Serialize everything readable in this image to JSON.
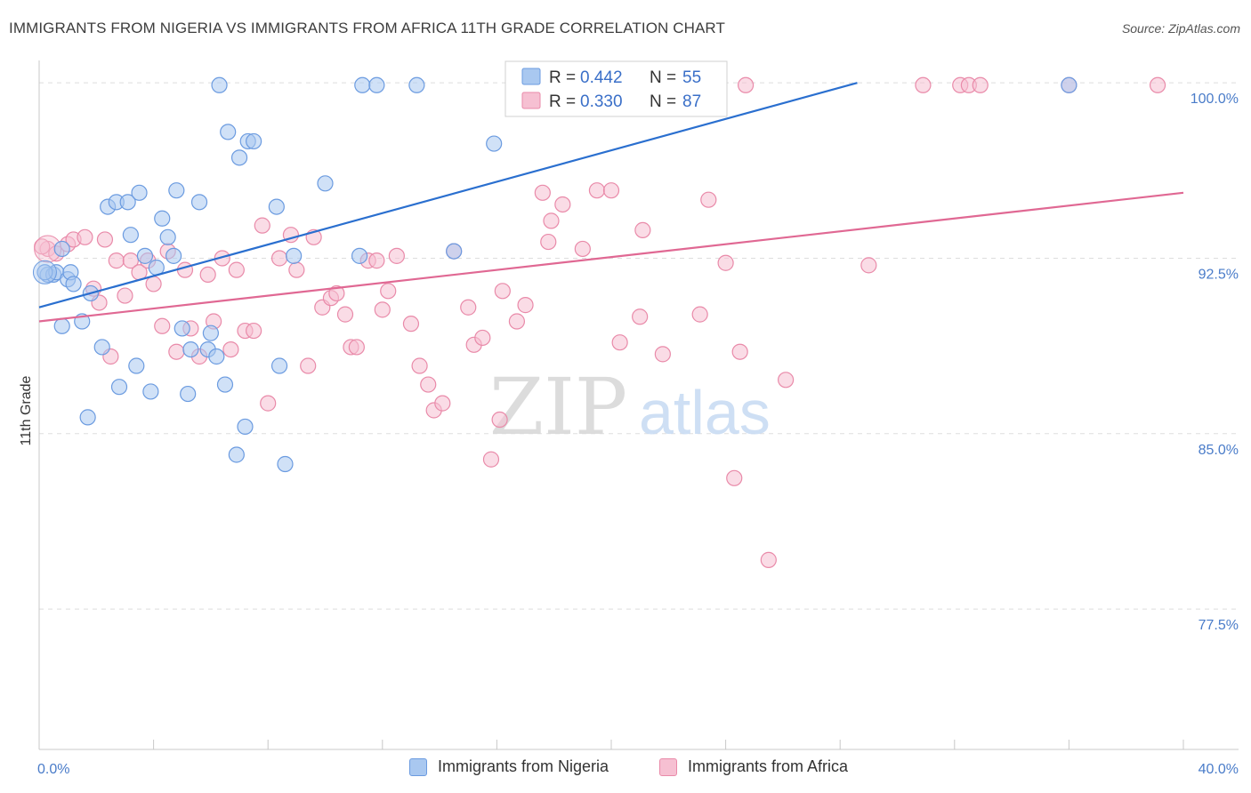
{
  "title": "IMMIGRANTS FROM NIGERIA VS IMMIGRANTS FROM AFRICA 11TH GRADE CORRELATION CHART",
  "source": "Source: ZipAtlas.com",
  "watermark": {
    "zip": "ZIP",
    "atlas": "atlas"
  },
  "colors": {
    "blue_fill": "#a9c8f0",
    "blue_stroke": "#6b9be0",
    "blue_line": "#2a6fcf",
    "pink_fill": "#f6c0d2",
    "pink_stroke": "#e98aa9",
    "pink_line": "#e06893",
    "tick_text": "#4a7cc9",
    "grid": "#dddddd"
  },
  "legend": {
    "series": [
      {
        "r_label": "R =",
        "r_value": "0.442",
        "n_label": "N =",
        "n_value": "55"
      },
      {
        "r_label": "R =",
        "r_value": "0.330",
        "n_label": "N =",
        "n_value": "87"
      }
    ]
  },
  "bottom_legend": [
    "Immigrants from Nigeria",
    "Immigrants from Africa"
  ],
  "chart_data": {
    "type": "scatter",
    "title": "IMMIGRANTS FROM NIGERIA VS IMMIGRANTS FROM AFRICA 11TH GRADE CORRELATION CHART",
    "xlabel": "",
    "ylabel": "11th Grade",
    "xlim": [
      0,
      40
    ],
    "ylim": [
      71.5,
      100.5
    ],
    "x_tick_labels": [
      "0.0%",
      "40.0%"
    ],
    "y_ticks": [
      100.0,
      92.5,
      85.0,
      77.5
    ],
    "y_tick_labels": [
      "100.0%",
      "92.5%",
      "85.0%",
      "77.5%"
    ],
    "grid": true,
    "legend_position": "top-center",
    "series": [
      {
        "name": "Immigrants from Nigeria",
        "r": 0.442,
        "n": 55,
        "trendline": {
          "x": [
            0,
            28.6
          ],
          "y": [
            90.4,
            100.0
          ]
        },
        "points": [
          [
            0.3,
            91.8
          ],
          [
            0.5,
            91.8
          ],
          [
            0.6,
            91.9
          ],
          [
            0.8,
            92.9
          ],
          [
            1.0,
            91.6
          ],
          [
            1.1,
            91.9
          ],
          [
            1.2,
            91.4
          ],
          [
            0.8,
            89.6
          ],
          [
            1.5,
            89.8
          ],
          [
            1.8,
            91.0
          ],
          [
            1.7,
            85.7
          ],
          [
            2.2,
            88.7
          ],
          [
            2.4,
            94.7
          ],
          [
            2.7,
            94.9
          ],
          [
            3.1,
            94.9
          ],
          [
            3.2,
            93.5
          ],
          [
            3.4,
            87.9
          ],
          [
            3.5,
            95.3
          ],
          [
            2.8,
            87.0
          ],
          [
            3.9,
            86.8
          ],
          [
            4.1,
            92.1
          ],
          [
            4.3,
            94.2
          ],
          [
            4.5,
            93.4
          ],
          [
            4.7,
            92.6
          ],
          [
            3.7,
            92.6
          ],
          [
            4.8,
            95.4
          ],
          [
            5.0,
            89.5
          ],
          [
            5.2,
            86.7
          ],
          [
            5.3,
            88.6
          ],
          [
            5.6,
            94.9
          ],
          [
            5.9,
            88.6
          ],
          [
            6.0,
            89.3
          ],
          [
            6.2,
            88.3
          ],
          [
            6.5,
            87.1
          ],
          [
            6.3,
            99.9
          ],
          [
            6.6,
            97.9
          ],
          [
            6.9,
            84.1
          ],
          [
            7.0,
            96.8
          ],
          [
            7.2,
            85.3
          ],
          [
            7.3,
            97.5
          ],
          [
            7.5,
            97.5
          ],
          [
            8.3,
            94.7
          ],
          [
            8.4,
            87.9
          ],
          [
            8.6,
            83.7
          ],
          [
            8.9,
            92.6
          ],
          [
            10.0,
            95.7
          ],
          [
            11.2,
            92.6
          ],
          [
            11.3,
            99.9
          ],
          [
            11.8,
            99.9
          ],
          [
            13.2,
            99.9
          ],
          [
            14.5,
            92.8
          ],
          [
            15.9,
            97.4
          ],
          [
            16.8,
            99.9
          ],
          [
            36.0,
            99.9
          ],
          [
            0.2,
            91.9
          ]
        ]
      },
      {
        "name": "Immigrants from Africa",
        "r": 0.33,
        "n": 87,
        "trendline": {
          "x": [
            0,
            40
          ],
          "y": [
            89.8,
            95.3
          ]
        },
        "points": [
          [
            0.3,
            92.9
          ],
          [
            0.6,
            92.7
          ],
          [
            1.0,
            93.1
          ],
          [
            1.2,
            93.3
          ],
          [
            1.6,
            93.4
          ],
          [
            1.9,
            91.2
          ],
          [
            2.1,
            90.6
          ],
          [
            2.3,
            93.3
          ],
          [
            2.7,
            92.4
          ],
          [
            3.0,
            90.9
          ],
          [
            3.2,
            92.4
          ],
          [
            3.5,
            91.9
          ],
          [
            3.8,
            92.4
          ],
          [
            4.0,
            91.4
          ],
          [
            4.3,
            89.6
          ],
          [
            4.5,
            92.8
          ],
          [
            4.8,
            88.5
          ],
          [
            5.1,
            92.0
          ],
          [
            5.3,
            89.5
          ],
          [
            5.6,
            88.3
          ],
          [
            5.9,
            91.8
          ],
          [
            6.1,
            89.8
          ],
          [
            6.4,
            92.5
          ],
          [
            6.7,
            88.6
          ],
          [
            6.9,
            92.0
          ],
          [
            7.2,
            89.4
          ],
          [
            7.5,
            89.4
          ],
          [
            7.8,
            93.9
          ],
          [
            8.0,
            86.3
          ],
          [
            8.4,
            92.5
          ],
          [
            8.8,
            93.5
          ],
          [
            9.0,
            92.0
          ],
          [
            9.4,
            87.9
          ],
          [
            9.6,
            93.4
          ],
          [
            9.9,
            90.4
          ],
          [
            10.2,
            90.8
          ],
          [
            10.4,
            91.0
          ],
          [
            10.7,
            90.1
          ],
          [
            10.9,
            88.7
          ],
          [
            11.1,
            88.7
          ],
          [
            11.5,
            92.4
          ],
          [
            11.8,
            92.4
          ],
          [
            12.0,
            90.3
          ],
          [
            12.2,
            91.1
          ],
          [
            12.5,
            92.6
          ],
          [
            13.0,
            89.7
          ],
          [
            13.3,
            87.9
          ],
          [
            13.6,
            87.1
          ],
          [
            13.8,
            86.0
          ],
          [
            14.1,
            86.3
          ],
          [
            14.5,
            92.8
          ],
          [
            15.0,
            90.4
          ],
          [
            15.2,
            88.8
          ],
          [
            15.5,
            89.1
          ],
          [
            15.8,
            83.9
          ],
          [
            16.1,
            85.6
          ],
          [
            16.2,
            91.1
          ],
          [
            16.7,
            89.8
          ],
          [
            17.0,
            90.5
          ],
          [
            17.6,
            95.3
          ],
          [
            17.8,
            93.2
          ],
          [
            17.9,
            94.1
          ],
          [
            18.3,
            94.8
          ],
          [
            19.0,
            92.9
          ],
          [
            19.5,
            95.4
          ],
          [
            20.0,
            95.4
          ],
          [
            20.3,
            88.9
          ],
          [
            21.1,
            93.7
          ],
          [
            21.8,
            88.4
          ],
          [
            23.1,
            90.1
          ],
          [
            23.4,
            95.0
          ],
          [
            24.0,
            92.3
          ],
          [
            24.3,
            83.1
          ],
          [
            24.5,
            88.5
          ],
          [
            24.7,
            99.9
          ],
          [
            25.5,
            79.6
          ],
          [
            26.1,
            87.3
          ],
          [
            29.0,
            92.2
          ],
          [
            30.9,
            99.9
          ],
          [
            32.2,
            99.9
          ],
          [
            32.5,
            99.9
          ],
          [
            32.9,
            99.9
          ],
          [
            36.0,
            99.9
          ],
          [
            39.1,
            99.9
          ],
          [
            0.1,
            93.0
          ],
          [
            2.5,
            88.3
          ],
          [
            21.0,
            90.0
          ]
        ]
      }
    ]
  }
}
